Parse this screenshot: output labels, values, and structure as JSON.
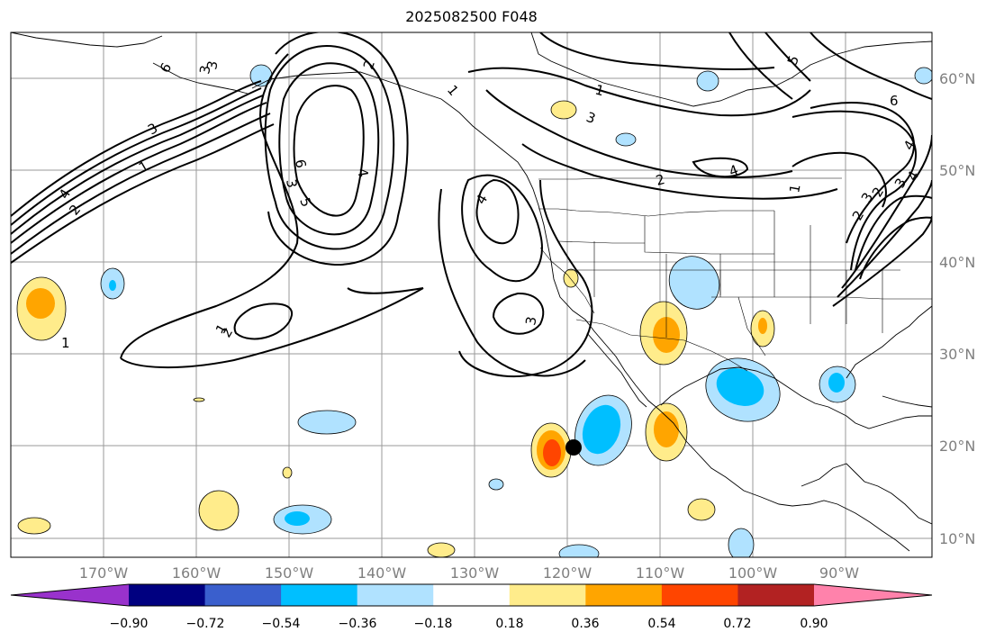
{
  "title": "2025082500 F048",
  "lon_labels": [
    "170°W",
    "160°W",
    "150°W",
    "140°W",
    "130°W",
    "120°W",
    "110°W",
    "100°W",
    "90°W"
  ],
  "lat_labels": [
    "60°N",
    "50°N",
    "40°N",
    "30°N",
    "20°N",
    "10°N"
  ],
  "colorbar": {
    "tick_labels": [
      "−0.90",
      "−0.72",
      "−0.54",
      "−0.36",
      "−0.18",
      "0.18",
      "0.36",
      "0.54",
      "0.72",
      "0.90"
    ],
    "colors": [
      "#9932cc",
      "#000080",
      "#3a5fcd",
      "#00bfff",
      "#b0e2ff",
      "#ffffff",
      "#ffec8b",
      "#ffa500",
      "#ff4500",
      "#b22222",
      "#ff82ab"
    ]
  },
  "contour_labels": [
    "6",
    "3",
    "1",
    "2",
    "1",
    "3",
    "4",
    "1",
    "2",
    "6",
    "3",
    "5",
    "4",
    "4",
    "3",
    "1",
    "2",
    "4",
    "3",
    "6",
    "5",
    "4",
    "3",
    "2",
    "1",
    "4",
    "3",
    "2",
    "1",
    "2",
    "3"
  ],
  "marker": "storm-center"
}
